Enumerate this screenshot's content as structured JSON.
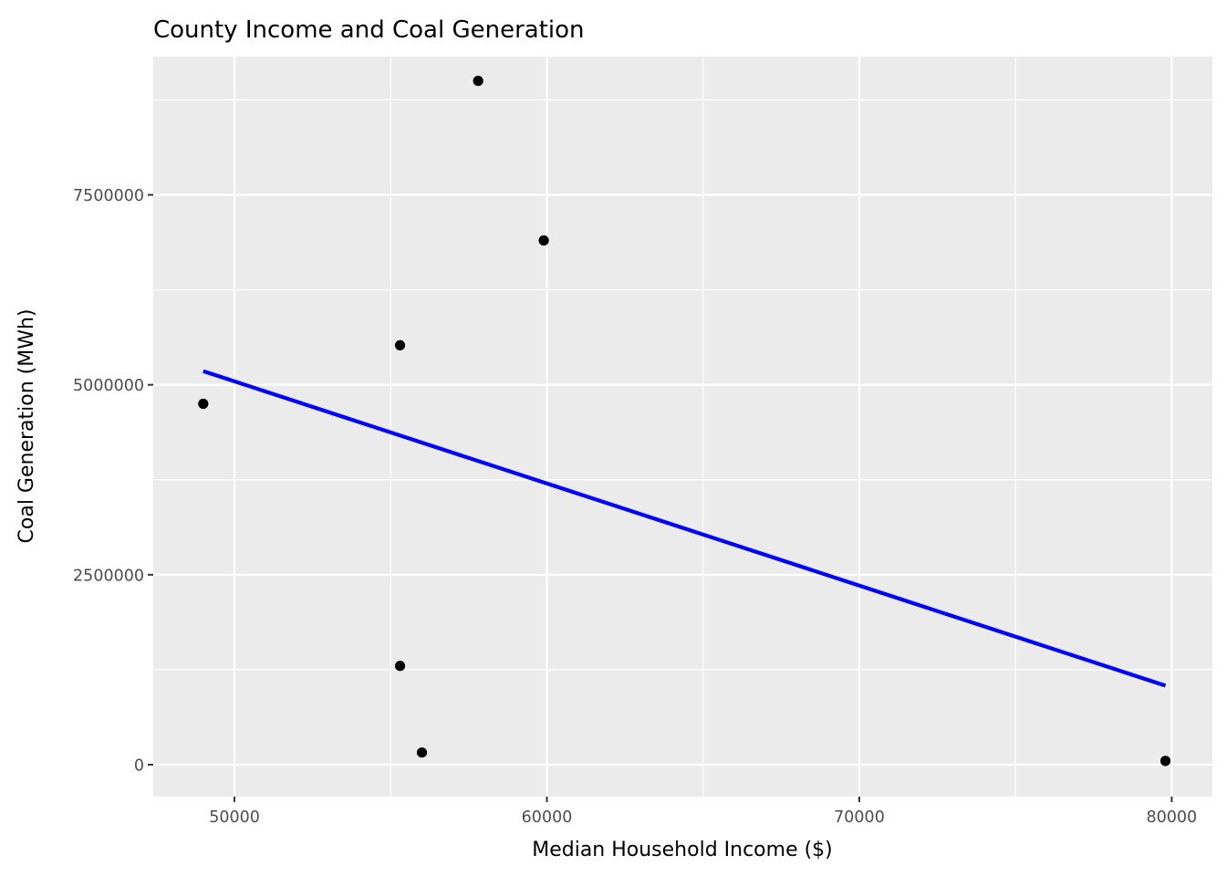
{
  "chart_data": {
    "type": "scatter",
    "title": "County Income and Coal Generation",
    "xlabel": "Median Household Income ($)",
    "ylabel": "Coal Generation (MWh)",
    "xlim": [
      47400,
      81300
    ],
    "ylim": [
      -420000,
      9320000
    ],
    "x_major_ticks": [
      50000,
      60000,
      70000,
      80000
    ],
    "x_tick_labels": [
      "50000",
      "60000",
      "70000",
      "80000"
    ],
    "x_minor_ticks": [
      55000,
      65000,
      75000
    ],
    "y_major_ticks": [
      0,
      2500000,
      5000000,
      7500000
    ],
    "y_tick_labels": [
      "0",
      "2500000",
      "5000000",
      "7500000"
    ],
    "y_minor_ticks": [
      1250000,
      3750000,
      6250000,
      8750000
    ],
    "points": [
      {
        "x": 49000,
        "y": 4750000
      },
      {
        "x": 55300,
        "y": 5520000
      },
      {
        "x": 55300,
        "y": 1300000
      },
      {
        "x": 56000,
        "y": 160000
      },
      {
        "x": 57800,
        "y": 9000000
      },
      {
        "x": 59900,
        "y": 6900000
      },
      {
        "x": 79800,
        "y": 50000
      }
    ],
    "trend_line": {
      "color": "#0000ff",
      "x": [
        49000,
        79800
      ],
      "y": [
        5180000,
        1040000
      ]
    },
    "panel_background": "#ebebeb",
    "grid_color": "#ffffff",
    "point_color": "#000000",
    "grid": true,
    "legend": "none"
  }
}
